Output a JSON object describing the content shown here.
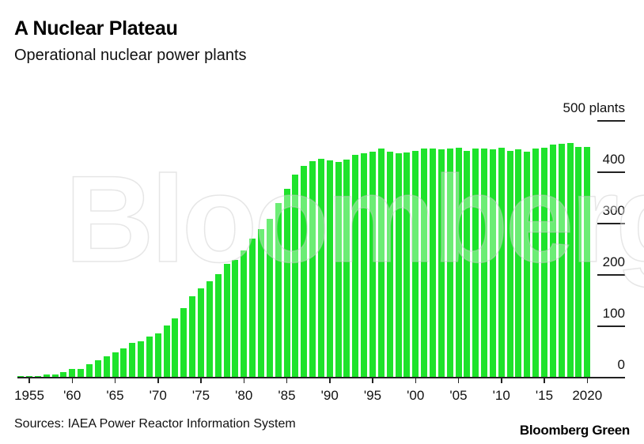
{
  "header": {
    "title": "A Nuclear Plateau",
    "subtitle": "Operational nuclear power plants"
  },
  "footer": {
    "source": "Sources: IAEA Power Reactor Information System",
    "brand": "Bloomberg Green"
  },
  "watermark": "Bloomberg",
  "colors": {
    "bar": "#1ee32b",
    "axis": "#222222",
    "text": "#111111"
  },
  "chart_data": {
    "type": "bar",
    "title": "A Nuclear Plateau",
    "subtitle": "Operational nuclear power plants",
    "xlabel": "",
    "ylabel": "plants",
    "ylim": [
      0,
      500
    ],
    "y_ticks": [
      {
        "value": 0,
        "label": "0"
      },
      {
        "value": 100,
        "label": "100"
      },
      {
        "value": 200,
        "label": "200"
      },
      {
        "value": 300,
        "label": "300"
      },
      {
        "value": 400,
        "label": "400"
      },
      {
        "value": 500,
        "label": "500 plants"
      }
    ],
    "x_ticks": [
      {
        "year": 1955,
        "label": "1955"
      },
      {
        "year": 1960,
        "label": "'60"
      },
      {
        "year": 1965,
        "label": "'65"
      },
      {
        "year": 1970,
        "label": "'70"
      },
      {
        "year": 1975,
        "label": "'75"
      },
      {
        "year": 1980,
        "label": "'80"
      },
      {
        "year": 1985,
        "label": "'85"
      },
      {
        "year": 1990,
        "label": "'90"
      },
      {
        "year": 1995,
        "label": "'95"
      },
      {
        "year": 2000,
        "label": "'00"
      },
      {
        "year": 2005,
        "label": "'05"
      },
      {
        "year": 2010,
        "label": "'10"
      },
      {
        "year": 2015,
        "label": "'15"
      },
      {
        "year": 2020,
        "label": "2020"
      }
    ],
    "grid": "right-side short segments",
    "legend": "none",
    "categories": [
      1954,
      1955,
      1956,
      1957,
      1958,
      1959,
      1960,
      1961,
      1962,
      1963,
      1964,
      1965,
      1966,
      1967,
      1968,
      1969,
      1970,
      1971,
      1972,
      1973,
      1974,
      1975,
      1976,
      1977,
      1978,
      1979,
      1980,
      1981,
      1982,
      1983,
      1984,
      1985,
      1986,
      1987,
      1988,
      1989,
      1990,
      1991,
      1992,
      1993,
      1994,
      1995,
      1996,
      1997,
      1998,
      1999,
      2000,
      2001,
      2002,
      2003,
      2004,
      2005,
      2006,
      2007,
      2008,
      2009,
      2010,
      2011,
      2012,
      2013,
      2014,
      2015,
      2016,
      2017,
      2018,
      2019,
      2020
    ],
    "values": [
      1,
      1,
      1,
      5,
      5,
      10,
      15,
      15,
      25,
      32,
      40,
      48,
      55,
      66,
      69,
      78,
      85,
      100,
      114,
      134,
      157,
      172,
      186,
      200,
      220,
      228,
      246,
      269,
      288,
      308,
      338,
      366,
      394,
      411,
      420,
      425,
      421,
      419,
      423,
      432,
      435,
      438,
      444,
      438,
      435,
      437,
      440,
      444,
      444,
      443,
      444,
      446,
      440,
      444,
      444,
      443,
      446,
      440,
      443,
      438,
      444,
      446,
      452,
      454,
      455,
      448,
      448
    ]
  }
}
